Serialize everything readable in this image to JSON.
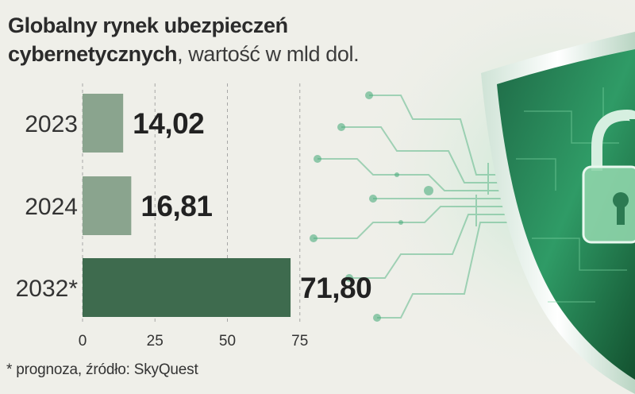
{
  "title_line1": "Globalny rynek ubezpieczeń",
  "title_line2_bold": "cybernetycznych",
  "title_line2_rest": ", wartość w mld dol.",
  "footnote": "* prognoza, źródło: SkyQuest",
  "colors": {
    "bar_light": "#8aa48e",
    "bar_dark": "#3e6b4e",
    "accent_green": "#3f9a68",
    "text": "#222222"
  },
  "chart_data": {
    "type": "bar",
    "orientation": "horizontal",
    "title": "Globalny rynek ubezpieczeń cybernetycznych, wartość w mld dol.",
    "categories": [
      "2023",
      "2024",
      "2032*"
    ],
    "values": [
      14.02,
      16.81,
      71.8
    ],
    "value_labels": [
      "14,02",
      "16,81",
      "71,80"
    ],
    "xticks": [
      "0",
      "25",
      "50",
      "75"
    ],
    "xlim": [
      0,
      75
    ],
    "grid": "dashed vertical",
    "legend": "none"
  }
}
